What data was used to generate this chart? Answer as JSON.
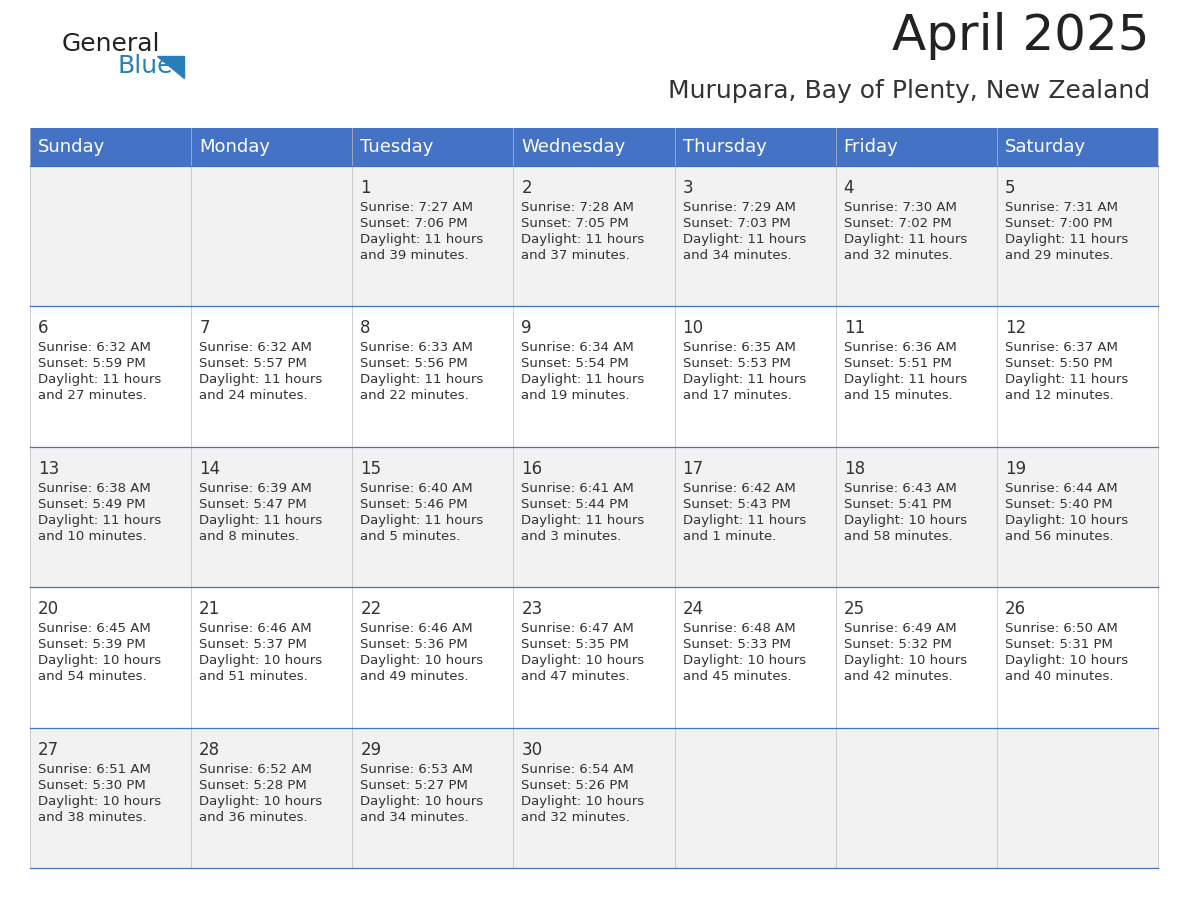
{
  "title": "April 2025",
  "subtitle": "Murupara, Bay of Plenty, New Zealand",
  "days_of_week": [
    "Sunday",
    "Monday",
    "Tuesday",
    "Wednesday",
    "Thursday",
    "Friday",
    "Saturday"
  ],
  "header_bg": "#4472C4",
  "header_text": "#FFFFFF",
  "cell_bg_odd": "#F2F2F2",
  "cell_bg_even": "#FFFFFF",
  "cell_border": "#4472C4",
  "title_color": "#222222",
  "subtitle_color": "#333333",
  "day_text_color": "#333333",
  "logo_general_color": "#222222",
  "logo_blue_color": "#2980b9",
  "weeks": [
    [
      {
        "day": "",
        "sunrise": "",
        "sunset": "",
        "daylight": ""
      },
      {
        "day": "",
        "sunrise": "",
        "sunset": "",
        "daylight": ""
      },
      {
        "day": "1",
        "sunrise": "Sunrise: 7:27 AM",
        "sunset": "Sunset: 7:06 PM",
        "daylight": "Daylight: 11 hours\nand 39 minutes."
      },
      {
        "day": "2",
        "sunrise": "Sunrise: 7:28 AM",
        "sunset": "Sunset: 7:05 PM",
        "daylight": "Daylight: 11 hours\nand 37 minutes."
      },
      {
        "day": "3",
        "sunrise": "Sunrise: 7:29 AM",
        "sunset": "Sunset: 7:03 PM",
        "daylight": "Daylight: 11 hours\nand 34 minutes."
      },
      {
        "day": "4",
        "sunrise": "Sunrise: 7:30 AM",
        "sunset": "Sunset: 7:02 PM",
        "daylight": "Daylight: 11 hours\nand 32 minutes."
      },
      {
        "day": "5",
        "sunrise": "Sunrise: 7:31 AM",
        "sunset": "Sunset: 7:00 PM",
        "daylight": "Daylight: 11 hours\nand 29 minutes."
      }
    ],
    [
      {
        "day": "6",
        "sunrise": "Sunrise: 6:32 AM",
        "sunset": "Sunset: 5:59 PM",
        "daylight": "Daylight: 11 hours\nand 27 minutes."
      },
      {
        "day": "7",
        "sunrise": "Sunrise: 6:32 AM",
        "sunset": "Sunset: 5:57 PM",
        "daylight": "Daylight: 11 hours\nand 24 minutes."
      },
      {
        "day": "8",
        "sunrise": "Sunrise: 6:33 AM",
        "sunset": "Sunset: 5:56 PM",
        "daylight": "Daylight: 11 hours\nand 22 minutes."
      },
      {
        "day": "9",
        "sunrise": "Sunrise: 6:34 AM",
        "sunset": "Sunset: 5:54 PM",
        "daylight": "Daylight: 11 hours\nand 19 minutes."
      },
      {
        "day": "10",
        "sunrise": "Sunrise: 6:35 AM",
        "sunset": "Sunset: 5:53 PM",
        "daylight": "Daylight: 11 hours\nand 17 minutes."
      },
      {
        "day": "11",
        "sunrise": "Sunrise: 6:36 AM",
        "sunset": "Sunset: 5:51 PM",
        "daylight": "Daylight: 11 hours\nand 15 minutes."
      },
      {
        "day": "12",
        "sunrise": "Sunrise: 6:37 AM",
        "sunset": "Sunset: 5:50 PM",
        "daylight": "Daylight: 11 hours\nand 12 minutes."
      }
    ],
    [
      {
        "day": "13",
        "sunrise": "Sunrise: 6:38 AM",
        "sunset": "Sunset: 5:49 PM",
        "daylight": "Daylight: 11 hours\nand 10 minutes."
      },
      {
        "day": "14",
        "sunrise": "Sunrise: 6:39 AM",
        "sunset": "Sunset: 5:47 PM",
        "daylight": "Daylight: 11 hours\nand 8 minutes."
      },
      {
        "day": "15",
        "sunrise": "Sunrise: 6:40 AM",
        "sunset": "Sunset: 5:46 PM",
        "daylight": "Daylight: 11 hours\nand 5 minutes."
      },
      {
        "day": "16",
        "sunrise": "Sunrise: 6:41 AM",
        "sunset": "Sunset: 5:44 PM",
        "daylight": "Daylight: 11 hours\nand 3 minutes."
      },
      {
        "day": "17",
        "sunrise": "Sunrise: 6:42 AM",
        "sunset": "Sunset: 5:43 PM",
        "daylight": "Daylight: 11 hours\nand 1 minute."
      },
      {
        "day": "18",
        "sunrise": "Sunrise: 6:43 AM",
        "sunset": "Sunset: 5:41 PM",
        "daylight": "Daylight: 10 hours\nand 58 minutes."
      },
      {
        "day": "19",
        "sunrise": "Sunrise: 6:44 AM",
        "sunset": "Sunset: 5:40 PM",
        "daylight": "Daylight: 10 hours\nand 56 minutes."
      }
    ],
    [
      {
        "day": "20",
        "sunrise": "Sunrise: 6:45 AM",
        "sunset": "Sunset: 5:39 PM",
        "daylight": "Daylight: 10 hours\nand 54 minutes."
      },
      {
        "day": "21",
        "sunrise": "Sunrise: 6:46 AM",
        "sunset": "Sunset: 5:37 PM",
        "daylight": "Daylight: 10 hours\nand 51 minutes."
      },
      {
        "day": "22",
        "sunrise": "Sunrise: 6:46 AM",
        "sunset": "Sunset: 5:36 PM",
        "daylight": "Daylight: 10 hours\nand 49 minutes."
      },
      {
        "day": "23",
        "sunrise": "Sunrise: 6:47 AM",
        "sunset": "Sunset: 5:35 PM",
        "daylight": "Daylight: 10 hours\nand 47 minutes."
      },
      {
        "day": "24",
        "sunrise": "Sunrise: 6:48 AM",
        "sunset": "Sunset: 5:33 PM",
        "daylight": "Daylight: 10 hours\nand 45 minutes."
      },
      {
        "day": "25",
        "sunrise": "Sunrise: 6:49 AM",
        "sunset": "Sunset: 5:32 PM",
        "daylight": "Daylight: 10 hours\nand 42 minutes."
      },
      {
        "day": "26",
        "sunrise": "Sunrise: 6:50 AM",
        "sunset": "Sunset: 5:31 PM",
        "daylight": "Daylight: 10 hours\nand 40 minutes."
      }
    ],
    [
      {
        "day": "27",
        "sunrise": "Sunrise: 6:51 AM",
        "sunset": "Sunset: 5:30 PM",
        "daylight": "Daylight: 10 hours\nand 38 minutes."
      },
      {
        "day": "28",
        "sunrise": "Sunrise: 6:52 AM",
        "sunset": "Sunset: 5:28 PM",
        "daylight": "Daylight: 10 hours\nand 36 minutes."
      },
      {
        "day": "29",
        "sunrise": "Sunrise: 6:53 AM",
        "sunset": "Sunset: 5:27 PM",
        "daylight": "Daylight: 10 hours\nand 34 minutes."
      },
      {
        "day": "30",
        "sunrise": "Sunrise: 6:54 AM",
        "sunset": "Sunset: 5:26 PM",
        "daylight": "Daylight: 10 hours\nand 32 minutes."
      },
      {
        "day": "",
        "sunrise": "",
        "sunset": "",
        "daylight": ""
      },
      {
        "day": "",
        "sunrise": "",
        "sunset": "",
        "daylight": ""
      },
      {
        "day": "",
        "sunrise": "",
        "sunset": "",
        "daylight": ""
      }
    ]
  ]
}
